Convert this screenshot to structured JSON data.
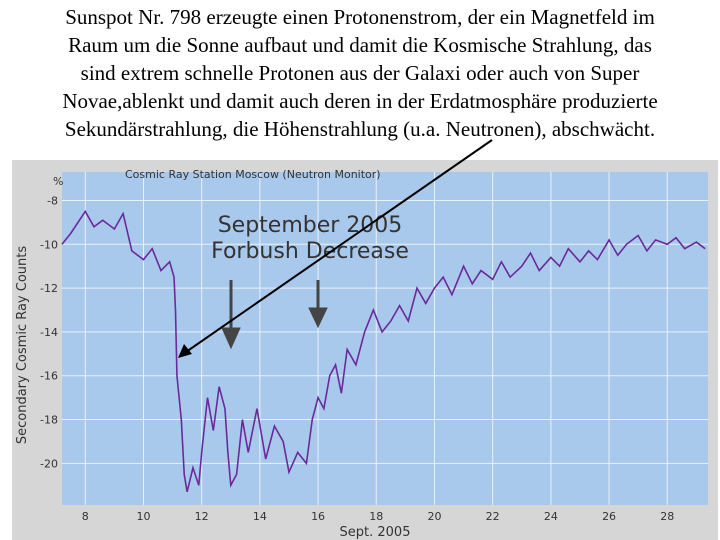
{
  "caption": {
    "lines": [
      "Sunspot Nr. 798 erzeugte einen Protonenstrom, der ein Magnetfeld im",
      "Raum um die Sonne aufbaut und damit die Kosmische Strahlung, das",
      "sind extrem schnelle Protonen aus der Galaxi oder auch von Super",
      "Novae,ablenkt und damit auch deren in der Erdatmosphäre produzierte",
      "Sekundärstrahlung, die Höhenstrahlung (u.a. Neutronen), abschwächt."
    ]
  },
  "chart_data": {
    "type": "line",
    "title": "Cosmic Ray Station Moscow (Neutron Monitor)",
    "y_label": "Secondary Cosmic Ray Counts",
    "y_unit": "%",
    "x_label": "Sept. 2005",
    "annotations": [
      "September 2005",
      "Forbush Decrease"
    ],
    "color": "#6a2a9a",
    "grid": true,
    "xlim": [
      7.2,
      29.4
    ],
    "ylim": [
      -21.9,
      -6.7
    ],
    "xticks": [
      8,
      10,
      12,
      14,
      16,
      18,
      20,
      22,
      24,
      26,
      28
    ],
    "yticks": [
      -8,
      -10,
      -12,
      -14,
      -16,
      -18,
      -20
    ],
    "x": [
      7.2,
      7.5,
      8,
      8.3,
      8.6,
      9,
      9.3,
      9.6,
      10,
      10.3,
      10.6,
      10.9,
      11.05,
      11.1,
      11.15,
      11.3,
      11.4,
      11.5,
      11.7,
      11.9,
      12.0,
      12.2,
      12.4,
      12.6,
      12.8,
      12.9,
      13.0,
      13.2,
      13.4,
      13.6,
      13.9,
      14.2,
      14.5,
      14.8,
      15,
      15.3,
      15.6,
      15.8,
      16,
      16.2,
      16.4,
      16.6,
      16.8,
      17,
      17.3,
      17.6,
      17.9,
      18.2,
      18.5,
      18.8,
      19.1,
      19.4,
      19.7,
      20,
      20.3,
      20.6,
      21,
      21.3,
      21.6,
      22,
      22.3,
      22.6,
      23,
      23.3,
      23.6,
      24,
      24.3,
      24.6,
      25,
      25.3,
      25.6,
      26,
      26.3,
      26.6,
      27,
      27.3,
      27.6,
      28,
      28.3,
      28.6,
      29,
      29.3
    ],
    "values": [
      -10,
      -9.5,
      -8.5,
      -9.2,
      -8.9,
      -9.3,
      -8.6,
      -10.3,
      -10.7,
      -10.2,
      -11.2,
      -10.8,
      -11.5,
      -13,
      -16,
      -18,
      -20.5,
      -21.3,
      -20.2,
      -21,
      -19.5,
      -17,
      -18.5,
      -16.5,
      -17.5,
      -19.5,
      -21,
      -20.5,
      -18,
      -19.5,
      -17.5,
      -19.8,
      -18.3,
      -19,
      -20.4,
      -19.5,
      -20,
      -18,
      -17,
      -17.5,
      -16,
      -15.5,
      -16.8,
      -14.8,
      -15.5,
      -14,
      -13,
      -14,
      -13.5,
      -12.8,
      -13.5,
      -12,
      -12.7,
      -12,
      -11.5,
      -12.3,
      -11,
      -11.8,
      -11.2,
      -11.6,
      -10.8,
      -11.5,
      -11,
      -10.4,
      -11.2,
      -10.6,
      -11,
      -10.2,
      -10.8,
      -10.3,
      -10.7,
      -9.8,
      -10.5,
      -10,
      -9.6,
      -10.3,
      -9.8,
      -10,
      -9.7,
      -10.2,
      -9.9,
      -10.2
    ]
  }
}
